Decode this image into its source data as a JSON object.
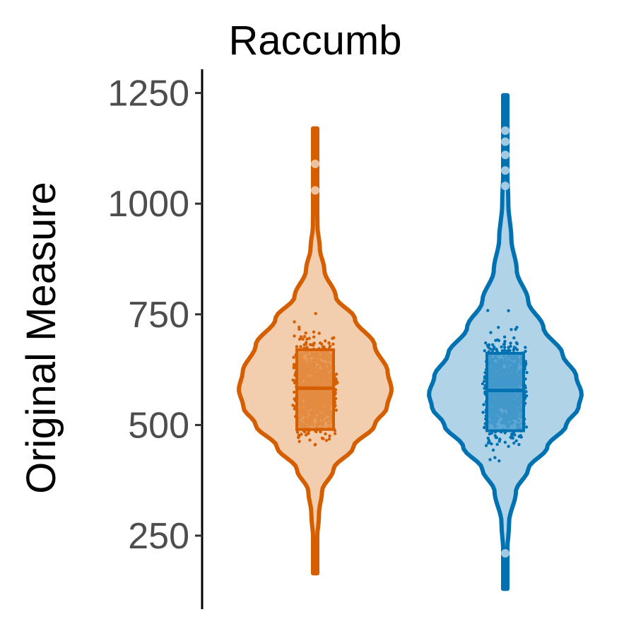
{
  "chart_data": {
    "type": "violin",
    "title": "Raccumb",
    "xlabel": "",
    "ylabel": "Original Measure",
    "ylim": [
      70,
      1300
    ],
    "yticks": [
      250,
      500,
      750,
      1000,
      1250
    ],
    "ytick_labels": [
      "250",
      "500",
      "750",
      "1000",
      "1250"
    ],
    "grid": false,
    "legend": "none",
    "series": [
      {
        "color": "#d55e00",
        "fill": "#f2cdae",
        "box_fill": "#e6934d",
        "min": 165,
        "max": 1170,
        "q1": 490,
        "median": 583,
        "q3": 670,
        "density": [
          [
            165,
            0.01
          ],
          [
            230,
            0.02
          ],
          [
            300,
            0.05
          ],
          [
            350,
            0.09
          ],
          [
            400,
            0.24
          ],
          [
            450,
            0.5
          ],
          [
            500,
            0.78
          ],
          [
            540,
            0.94
          ],
          [
            580,
            1.0
          ],
          [
            620,
            0.95
          ],
          [
            680,
            0.78
          ],
          [
            740,
            0.52
          ],
          [
            790,
            0.27
          ],
          [
            850,
            0.12
          ],
          [
            900,
            0.06
          ],
          [
            950,
            0.03
          ],
          [
            1050,
            0.015
          ],
          [
            1170,
            0.008
          ]
        ],
        "outliers": [
          1030,
          1090
        ]
      },
      {
        "color": "#0072b2",
        "fill": "#b1d3e8",
        "box_fill": "#4e9fcf",
        "min": 130,
        "max": 1245,
        "q1": 487,
        "median": 578,
        "q3": 662,
        "density": [
          [
            130,
            0.01
          ],
          [
            200,
            0.02
          ],
          [
            280,
            0.05
          ],
          [
            350,
            0.14
          ],
          [
            400,
            0.3
          ],
          [
            450,
            0.55
          ],
          [
            500,
            0.8
          ],
          [
            540,
            0.96
          ],
          [
            570,
            1.0
          ],
          [
            610,
            0.93
          ],
          [
            660,
            0.75
          ],
          [
            720,
            0.5
          ],
          [
            780,
            0.3
          ],
          [
            850,
            0.15
          ],
          [
            920,
            0.08
          ],
          [
            1000,
            0.04
          ],
          [
            1100,
            0.02
          ],
          [
            1245,
            0.008
          ]
        ],
        "outliers": [
          210,
          1040,
          1075,
          1110,
          1140,
          1165
        ]
      }
    ]
  }
}
